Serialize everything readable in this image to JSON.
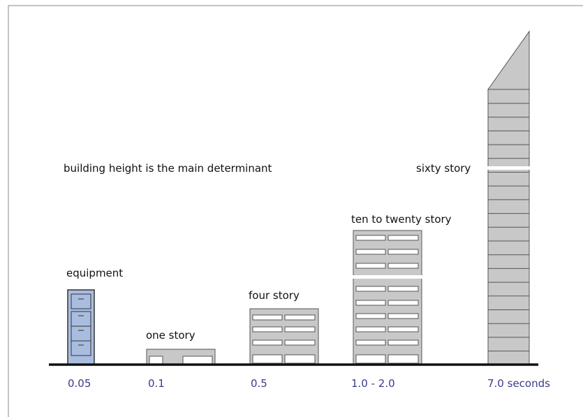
{
  "caption": "building height is the main determinant",
  "items": [
    {
      "label": "equipment",
      "value": "0.05"
    },
    {
      "label": "one story",
      "value": "0.1"
    },
    {
      "label": "four story",
      "value": "0.5"
    },
    {
      "label": "ten to twenty story",
      "value": "1.0 - 2.0"
    },
    {
      "label": "sixty story",
      "value": "7.0 seconds"
    }
  ]
}
